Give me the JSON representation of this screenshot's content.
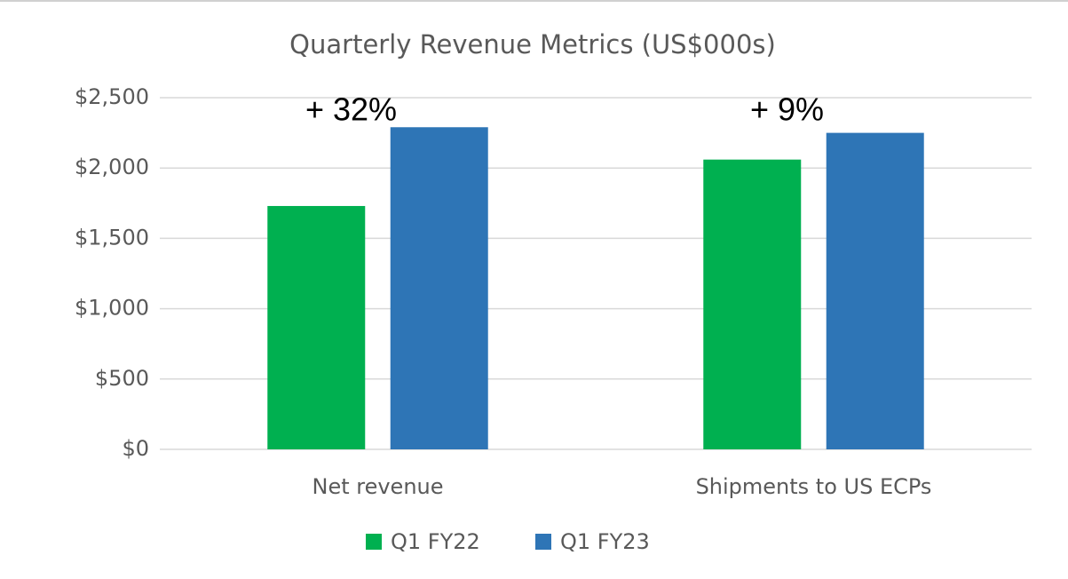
{
  "chart_data": {
    "type": "bar",
    "title": "Quarterly Revenue Metrics (US$000s)",
    "categories": [
      "Net revenue",
      "Shipments to US ECPs"
    ],
    "series": [
      {
        "name": "Q1 FY22",
        "color": "#00b050",
        "values": [
          1730,
          2060
        ]
      },
      {
        "name": "Q1 FY23",
        "color": "#2e75b6",
        "values": [
          2290,
          2250
        ]
      }
    ],
    "annotations": [
      "+ 32%",
      "+ 9%"
    ],
    "ylim": [
      0,
      2500
    ],
    "yticks": [
      {
        "value": 0,
        "label": "$0"
      },
      {
        "value": 500,
        "label": "$500"
      },
      {
        "value": 1000,
        "label": "$1,000"
      },
      {
        "value": 1500,
        "label": "$1,500"
      },
      {
        "value": 2000,
        "label": "$2,000"
      },
      {
        "value": 2500,
        "label": "$2,500"
      }
    ],
    "grid": true,
    "legend": "bottom"
  }
}
